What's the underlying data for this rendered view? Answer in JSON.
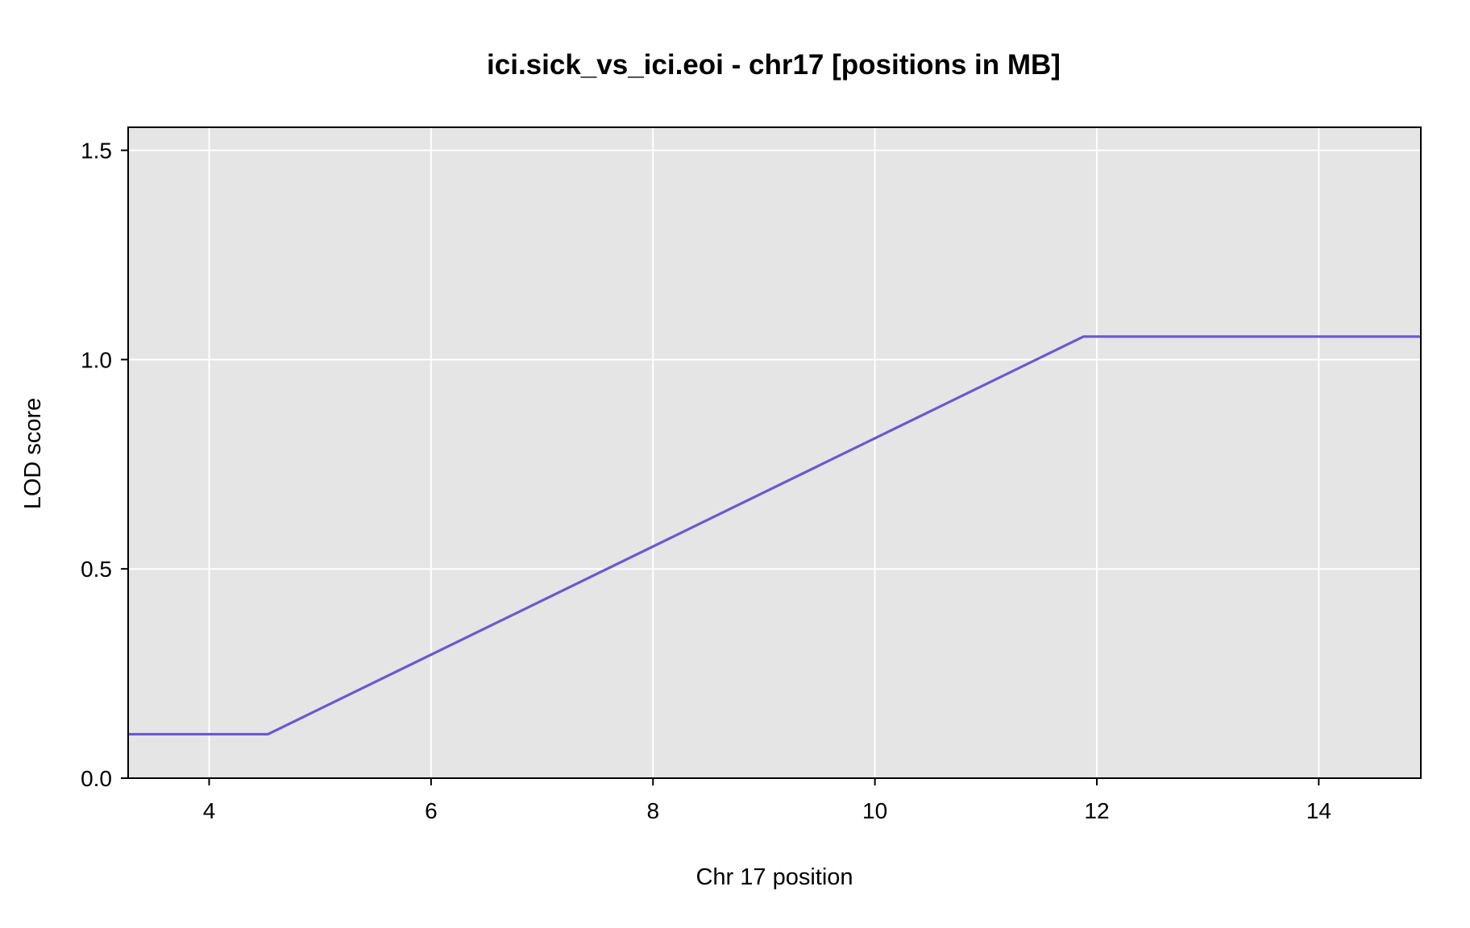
{
  "chart_data": {
    "type": "line",
    "title": "ici.sick_vs_ici.eoi - chr17 [positions in MB]",
    "xlabel": "Chr 17 position",
    "ylabel": "LOD score",
    "xlim": [
      3.27,
      14.92
    ],
    "ylim": [
      0.0,
      1.555
    ],
    "x_ticks": [
      4,
      6,
      8,
      10,
      12,
      14
    ],
    "y_ticks": [
      0.0,
      0.5,
      1.0,
      1.5
    ],
    "x_tick_labels": [
      "4",
      "6",
      "8",
      "10",
      "12",
      "14"
    ],
    "y_tick_labels": [
      "0.0",
      "0.5",
      "1.0",
      "1.5"
    ],
    "grid": true,
    "legend": false,
    "series": [
      {
        "color": "#6a5acd",
        "x": [
          3.27,
          4.53,
          11.88,
          14.92
        ],
        "y": [
          0.105,
          0.105,
          1.055,
          1.055
        ]
      }
    ],
    "colors": {
      "plot_background": "#e5e5e5",
      "grid": "#ffffff",
      "frame": "#000000",
      "baseline": "#191970"
    }
  }
}
